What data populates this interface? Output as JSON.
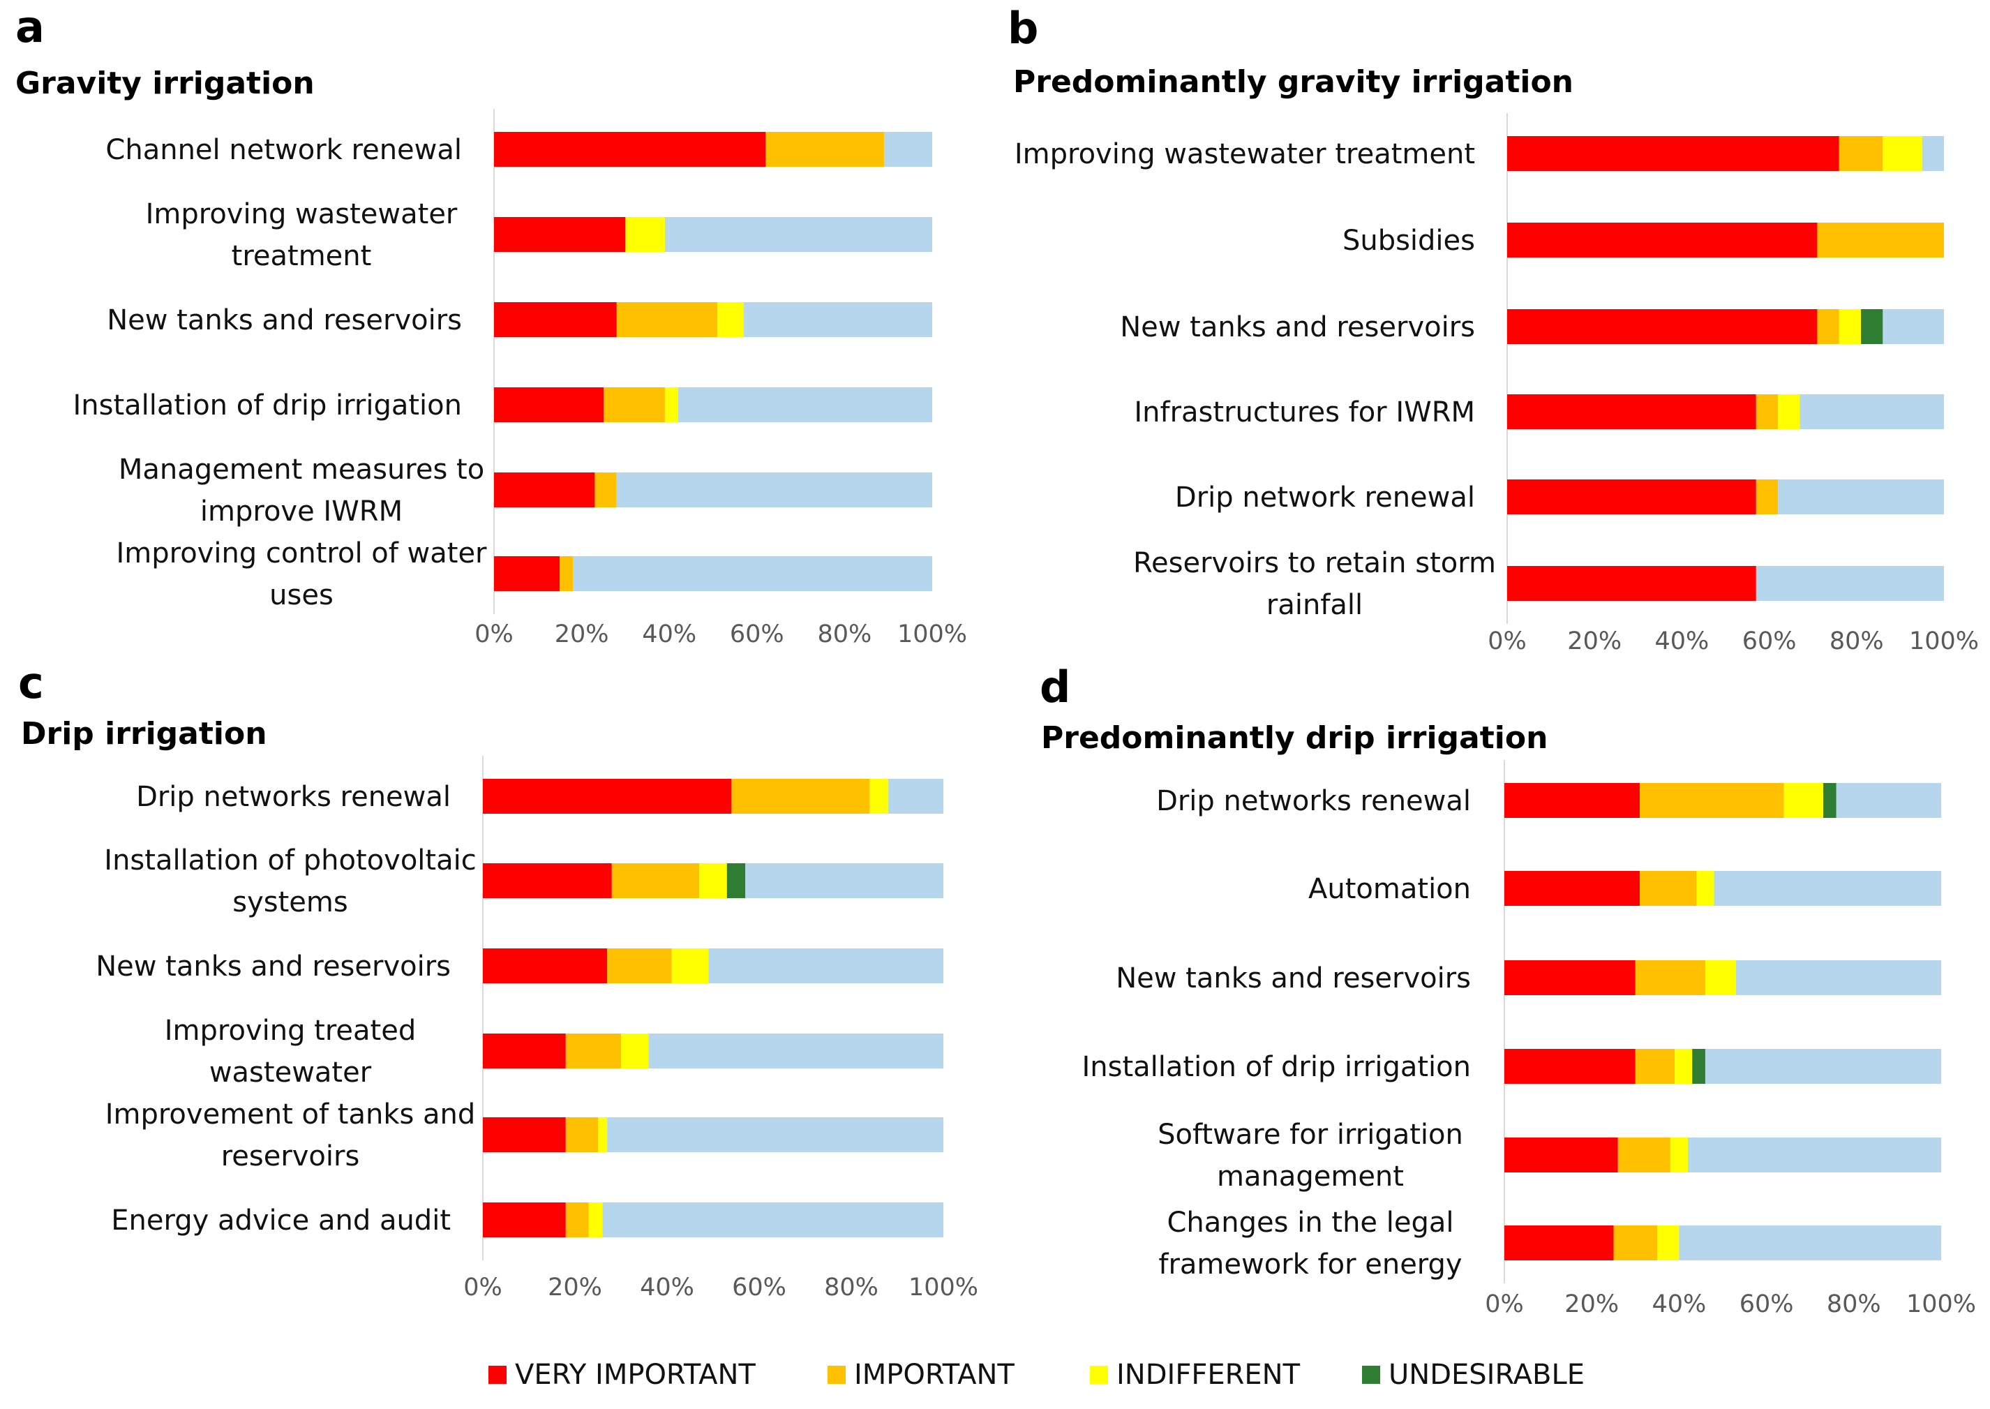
{
  "colors": {
    "very_important": "#fe0000",
    "important": "#ffc000",
    "indifferent": "#ffff00",
    "undesirable": "#2e7d32",
    "remainder": "#b5d6ec"
  },
  "legend": [
    {
      "label": "VERY IMPORTANT",
      "color": "#fe0000"
    },
    {
      "label": "IMPORTANT",
      "color": "#ffc000"
    },
    {
      "label": "INDIFFERENT",
      "color": "#ffff00"
    },
    {
      "label": "UNDESIRABLE",
      "color": "#2e7d32"
    }
  ],
  "chart_data": [
    {
      "panel": "a",
      "type": "bar",
      "orientation": "horizontal",
      "stacked": true,
      "title": "Gravity irrigation",
      "xlim": [
        0,
        100
      ],
      "xticks": [
        "0%",
        "20%",
        "40%",
        "60%",
        "80%",
        "100%"
      ],
      "categories": [
        "Channel network renewal",
        "Improving wastewater treatment",
        "New tanks and reservoirs",
        "Installation of drip irrigation",
        "Management measures to improve IWRM",
        "Improving control of water uses"
      ],
      "label_lines": [
        [
          "Channel network renewal"
        ],
        [
          "Improving wastewater",
          "treatment"
        ],
        [
          "New tanks and reservoirs"
        ],
        [
          "Installation of drip irrigation"
        ],
        [
          "Management measures to",
          "improve IWRM"
        ],
        [
          "Improving control of water",
          "uses"
        ]
      ],
      "series": [
        {
          "name": "VERY IMPORTANT",
          "values": [
            62,
            30,
            28,
            25,
            23,
            15
          ]
        },
        {
          "name": "IMPORTANT",
          "values": [
            27,
            0,
            23,
            14,
            5,
            3
          ]
        },
        {
          "name": "INDIFFERENT",
          "values": [
            0,
            9,
            6,
            3,
            0,
            0
          ]
        },
        {
          "name": "UNDESIRABLE",
          "values": [
            0,
            0,
            0,
            0,
            0,
            0
          ]
        }
      ]
    },
    {
      "panel": "b",
      "type": "bar",
      "orientation": "horizontal",
      "stacked": true,
      "title": "Predominantly  gravity irrigation",
      "xlim": [
        0,
        100
      ],
      "xticks": [
        "0%",
        "20%",
        "40%",
        "60%",
        "80%",
        "100%"
      ],
      "categories": [
        "Improving wastewater  treatment",
        "Subsidies",
        "New tanks and reservoirs",
        "Infrastructures for IWRM",
        "Drip network renewal",
        "Reservoirs to retain storm rainfall"
      ],
      "label_lines": [
        [
          "Improving wastewater  treatment"
        ],
        [
          "Subsidies"
        ],
        [
          "New tanks and reservoirs"
        ],
        [
          "Infrastructures for IWRM"
        ],
        [
          "Drip network renewal"
        ],
        [
          "Reservoirs to retain storm",
          "rainfall"
        ]
      ],
      "series": [
        {
          "name": "VERY IMPORTANT",
          "values": [
            76,
            71,
            71,
            57,
            57,
            57
          ]
        },
        {
          "name": "IMPORTANT",
          "values": [
            10,
            29,
            5,
            5,
            5,
            0
          ]
        },
        {
          "name": "INDIFFERENT",
          "values": [
            9,
            0,
            5,
            5,
            0,
            0
          ]
        },
        {
          "name": "UNDESIRABLE",
          "values": [
            0,
            0,
            5,
            0,
            0,
            0
          ]
        }
      ]
    },
    {
      "panel": "c",
      "type": "bar",
      "orientation": "horizontal",
      "stacked": true,
      "title": "Drip  irrigation",
      "xlim": [
        0,
        100
      ],
      "xticks": [
        "0%",
        "20%",
        "40%",
        "60%",
        "80%",
        "100%"
      ],
      "categories": [
        "Drip networks renewal",
        "Installation of photovoltaic systems",
        "New tanks and reservoirs",
        "Improving treated wastewater",
        "Improvement of tanks and reservoirs",
        "Energy advice and audit"
      ],
      "label_lines": [
        [
          "Drip networks renewal"
        ],
        [
          "Installation of photovoltaic",
          "systems"
        ],
        [
          "New tanks and reservoirs"
        ],
        [
          "Improving treated",
          "wastewater"
        ],
        [
          "Improvement of tanks and",
          "reservoirs"
        ],
        [
          "Energy advice and audit"
        ]
      ],
      "series": [
        {
          "name": "VERY IMPORTANT",
          "values": [
            54,
            28,
            27,
            18,
            18,
            18
          ]
        },
        {
          "name": "IMPORTANT",
          "values": [
            30,
            19,
            14,
            12,
            7,
            5
          ]
        },
        {
          "name": "INDIFFERENT",
          "values": [
            4,
            6,
            8,
            6,
            2,
            3
          ]
        },
        {
          "name": "UNDESIRABLE",
          "values": [
            0,
            4,
            0,
            0,
            0,
            0
          ]
        }
      ]
    },
    {
      "panel": "d",
      "type": "bar",
      "orientation": "horizontal",
      "stacked": true,
      "title": "Predominantly  drip irrigation",
      "xlim": [
        0,
        100
      ],
      "xticks": [
        "0%",
        "20%",
        "40%",
        "60%",
        "80%",
        "100%"
      ],
      "categories": [
        "Drip networks renewal",
        "Automation",
        "New tanks and reservoirs",
        "Installation of drip irrigation",
        "Software for irrigation management",
        "Changes in the legal framework for energy"
      ],
      "label_lines": [
        [
          "Drip networks renewal"
        ],
        [
          "Automation"
        ],
        [
          "New tanks and reservoirs"
        ],
        [
          "Installation of drip irrigation"
        ],
        [
          "Software for irrigation",
          "management"
        ],
        [
          "Changes in the legal",
          "framework for energy"
        ]
      ],
      "series": [
        {
          "name": "VERY IMPORTANT",
          "values": [
            31,
            31,
            30,
            30,
            26,
            25
          ]
        },
        {
          "name": "IMPORTANT",
          "values": [
            33,
            13,
            16,
            9,
            12,
            10
          ]
        },
        {
          "name": "INDIFFERENT",
          "values": [
            9,
            4,
            7,
            4,
            4,
            5
          ]
        },
        {
          "name": "UNDESIRABLE",
          "values": [
            3,
            0,
            0,
            3,
            0,
            0
          ]
        }
      ]
    }
  ]
}
